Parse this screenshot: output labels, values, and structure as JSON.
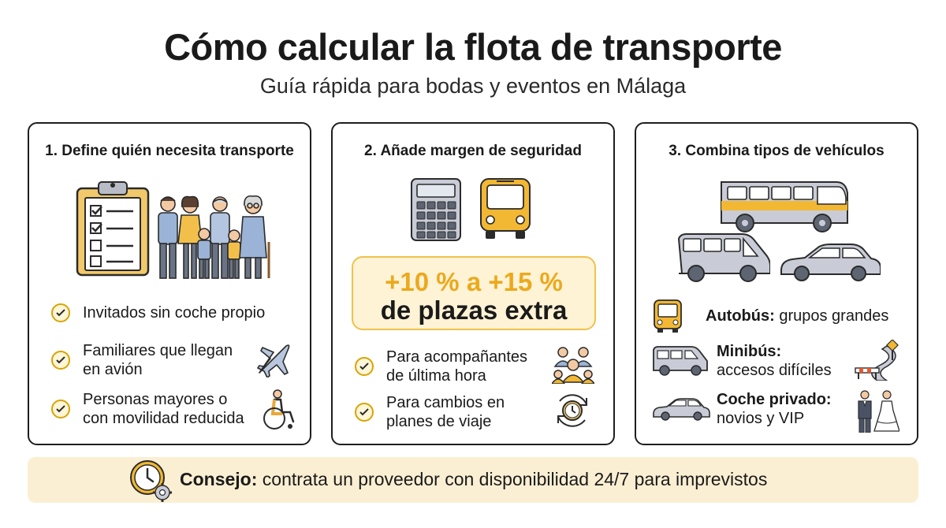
{
  "header": {
    "title": "Cómo calcular la flota de transporte",
    "subtitle": "Guía rápida para bodas y eventos en Málaga"
  },
  "cards": [
    {
      "title": "1. Define quién necesita transporte",
      "illustration": [
        "clipboard-checklist-icon",
        "family-group-icon"
      ],
      "items": [
        {
          "text": "Invitados sin coche propio",
          "icon": null
        },
        {
          "text_lines": [
            "Familiares que llegan",
            "en avión"
          ],
          "icon": "airplane-icon"
        },
        {
          "text_lines": [
            "Personas mayores o",
            "con movilidad reducida"
          ],
          "icon": "wheelchair-icon"
        }
      ]
    },
    {
      "title": "2. Añade margen de seguridad",
      "illustration": [
        "calculator-icon",
        "bus-front-icon"
      ],
      "highlight": {
        "percent": "+10 % a +15 %",
        "label": "de plazas extra"
      },
      "items": [
        {
          "text_lines": [
            "Para acompañantes",
            "de última hora"
          ],
          "icon": "people-group-icon"
        },
        {
          "text_lines": [
            "Para cambios en",
            "planes de viaje"
          ],
          "icon": "clock-refresh-icon"
        }
      ]
    },
    {
      "title": "3. Combina tipos de vehículos",
      "illustration": [
        "coach-bus-icon",
        "minibus-icon",
        "car-icon"
      ],
      "vehicles": [
        {
          "name": "Autobús:",
          "desc": "grupos grandes",
          "icon": "bus-front-icon"
        },
        {
          "name": "Minibús:",
          "desc": "accesos difíciles",
          "icon": "minibus-icon",
          "side_icon": "winding-road-barrier-icon"
        },
        {
          "name": "Coche privado:",
          "desc": "novios y VIP",
          "icon": "car-icon",
          "side_icon": "wedding-couple-icon"
        }
      ]
    }
  ],
  "tip": {
    "label": "Consejo:",
    "text": "contrata un proveedor con disponibilidad 24/7 para imprevistos",
    "icon": "clock-gear-icon"
  },
  "colors": {
    "accent": "#eba91c",
    "highlight_bg": "#fff3d6",
    "tip_bg": "#fbefd3",
    "vehicle_body": "#c9ccd6",
    "bus_yellow": "#f2b833"
  }
}
